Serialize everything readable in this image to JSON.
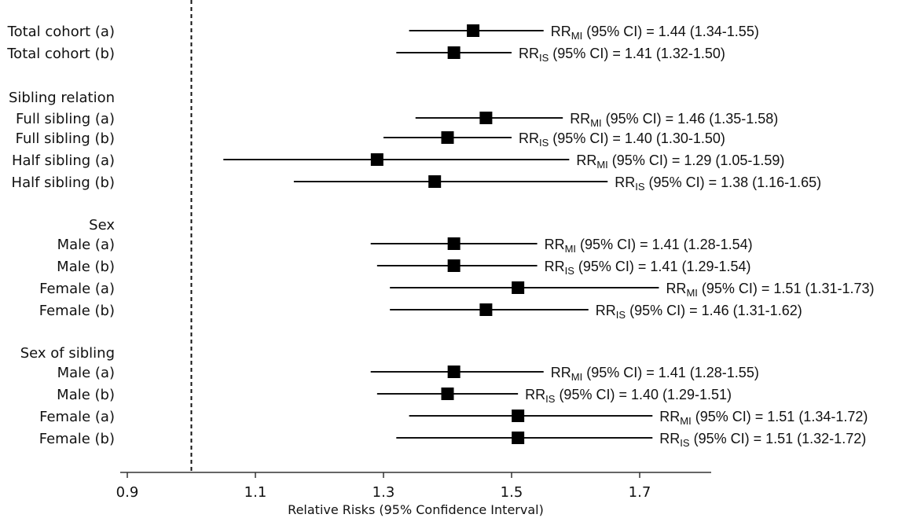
{
  "chart_data": {
    "type": "forest",
    "title": "",
    "xlabel": "Relative Risks (95% Confidence Interval)",
    "xlim": [
      0.88,
      1.82
    ],
    "xticks": [
      0.9,
      1.1,
      1.3,
      1.5,
      1.7
    ],
    "xtick_labels": [
      "0.9",
      "1.1",
      "1.3",
      "1.5",
      "1.7"
    ],
    "reference_line": 1.0,
    "annotation_mid": "(95% CI) =",
    "rows": [
      {
        "label": "Total cohort (a)",
        "rr": 1.44,
        "lo": 1.34,
        "hi": 1.55,
        "sub": "MI",
        "value_text": "1.44 (1.34-1.55)"
      },
      {
        "label": "Total cohort (b)",
        "rr": 1.41,
        "lo": 1.32,
        "hi": 1.5,
        "sub": "IS",
        "value_text": "1.41 (1.32-1.50)"
      },
      {
        "header": "Sibling relation"
      },
      {
        "label": "Full sibling (a)",
        "rr": 1.46,
        "lo": 1.35,
        "hi": 1.58,
        "sub": "MI",
        "value_text": "1.46 (1.35-1.58)"
      },
      {
        "label": "Full sibling (b)",
        "rr": 1.4,
        "lo": 1.3,
        "hi": 1.5,
        "sub": "IS",
        "value_text": "1.40 (1.30-1.50)"
      },
      {
        "label": "Half sibling (a)",
        "rr": 1.29,
        "lo": 1.05,
        "hi": 1.59,
        "sub": "MI",
        "value_text": "1.29 (1.05-1.59)"
      },
      {
        "label": "Half sibling (b)",
        "rr": 1.38,
        "lo": 1.16,
        "hi": 1.65,
        "sub": "IS",
        "value_text": "1.38 (1.16-1.65)"
      },
      {
        "header": "Sex"
      },
      {
        "label": "Male (a)",
        "rr": 1.41,
        "lo": 1.28,
        "hi": 1.54,
        "sub": "MI",
        "value_text": "1.41 (1.28-1.54)"
      },
      {
        "label": "Male (b)",
        "rr": 1.41,
        "lo": 1.29,
        "hi": 1.54,
        "sub": "IS",
        "value_text": "1.41 (1.29-1.54)"
      },
      {
        "label": "Female (a)",
        "rr": 1.51,
        "lo": 1.31,
        "hi": 1.73,
        "sub": "MI",
        "value_text": "1.51 (1.31-1.73)"
      },
      {
        "label": "Female (b)",
        "rr": 1.46,
        "lo": 1.31,
        "hi": 1.62,
        "sub": "IS",
        "value_text": "1.46 (1.31-1.62)"
      },
      {
        "header": "Sex of sibling"
      },
      {
        "label": "Male (a)",
        "rr": 1.41,
        "lo": 1.28,
        "hi": 1.55,
        "sub": "MI",
        "value_text": "1.41 (1.28-1.55)"
      },
      {
        "label": "Male (b)",
        "rr": 1.4,
        "lo": 1.29,
        "hi": 1.51,
        "sub": "IS",
        "value_text": "1.40 (1.29-1.51)"
      },
      {
        "label": "Female (a)",
        "rr": 1.51,
        "lo": 1.34,
        "hi": 1.72,
        "sub": "MI",
        "value_text": "1.51 (1.34-1.72)"
      },
      {
        "label": "Female (b)",
        "rr": 1.51,
        "lo": 1.32,
        "hi": 1.72,
        "sub": "IS",
        "value_text": "1.51 (1.32-1.72)"
      }
    ]
  }
}
